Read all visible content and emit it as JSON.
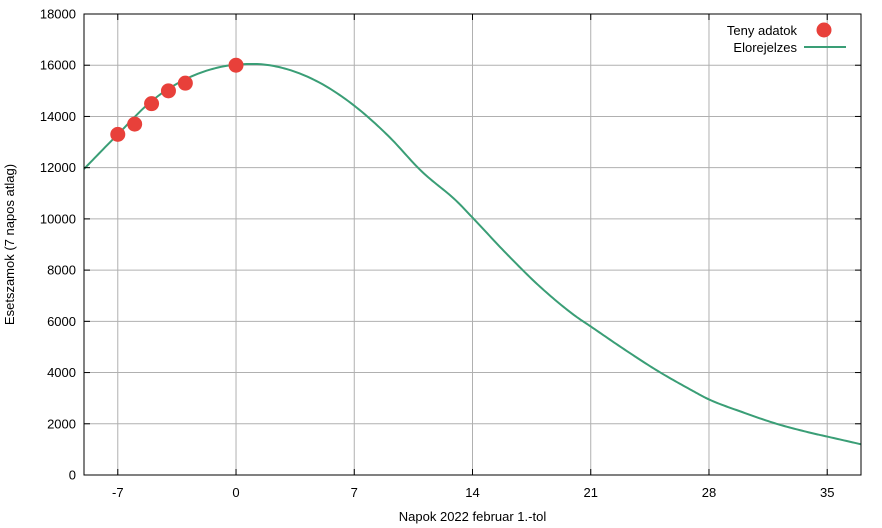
{
  "chart_data": {
    "type": "line",
    "xlabel": "Napok 2022 februar 1.-tol",
    "ylabel": "Esetszamok (7 napos atlag)",
    "xlim": [
      -9,
      37
    ],
    "ylim": [
      0,
      18000
    ],
    "x_ticks": [
      -7,
      0,
      7,
      14,
      21,
      28,
      35
    ],
    "y_ticks": [
      0,
      2000,
      4000,
      6000,
      8000,
      10000,
      12000,
      14000,
      16000,
      18000
    ],
    "grid": true,
    "legend_position": "top-right",
    "colors": {
      "actual": "#e8403a",
      "forecast": "#3a9e76",
      "grid": "#b0b0b0"
    },
    "series": [
      {
        "name": "Teny adatok",
        "type": "scatter",
        "points": [
          {
            "x": -7,
            "y": 13300
          },
          {
            "x": -6,
            "y": 13700
          },
          {
            "x": -5,
            "y": 14500
          },
          {
            "x": -4,
            "y": 15000
          },
          {
            "x": -3,
            "y": 15300
          },
          {
            "x": 0,
            "y": 16000
          }
        ]
      },
      {
        "name": "Elorejelzes",
        "type": "line",
        "points": [
          {
            "x": -9,
            "y": 11950
          },
          {
            "x": -7,
            "y": 13300
          },
          {
            "x": -5,
            "y": 14600
          },
          {
            "x": -3,
            "y": 15450
          },
          {
            "x": -1,
            "y": 15920
          },
          {
            "x": 1,
            "y": 16050
          },
          {
            "x": 3,
            "y": 15850
          },
          {
            "x": 5,
            "y": 15300
          },
          {
            "x": 7,
            "y": 14420
          },
          {
            "x": 9,
            "y": 13250
          },
          {
            "x": 11,
            "y": 11850
          },
          {
            "x": 13,
            "y": 10730
          },
          {
            "x": 14,
            "y": 10050
          },
          {
            "x": 16,
            "y": 8650
          },
          {
            "x": 18,
            "y": 7350
          },
          {
            "x": 20,
            "y": 6250
          },
          {
            "x": 21,
            "y": 5800
          },
          {
            "x": 23,
            "y": 4900
          },
          {
            "x": 25,
            "y": 4050
          },
          {
            "x": 27,
            "y": 3300
          },
          {
            "x": 28,
            "y": 2950
          },
          {
            "x": 30,
            "y": 2450
          },
          {
            "x": 32,
            "y": 2000
          },
          {
            "x": 34,
            "y": 1650
          },
          {
            "x": 35,
            "y": 1500
          },
          {
            "x": 37,
            "y": 1200
          }
        ]
      }
    ]
  }
}
